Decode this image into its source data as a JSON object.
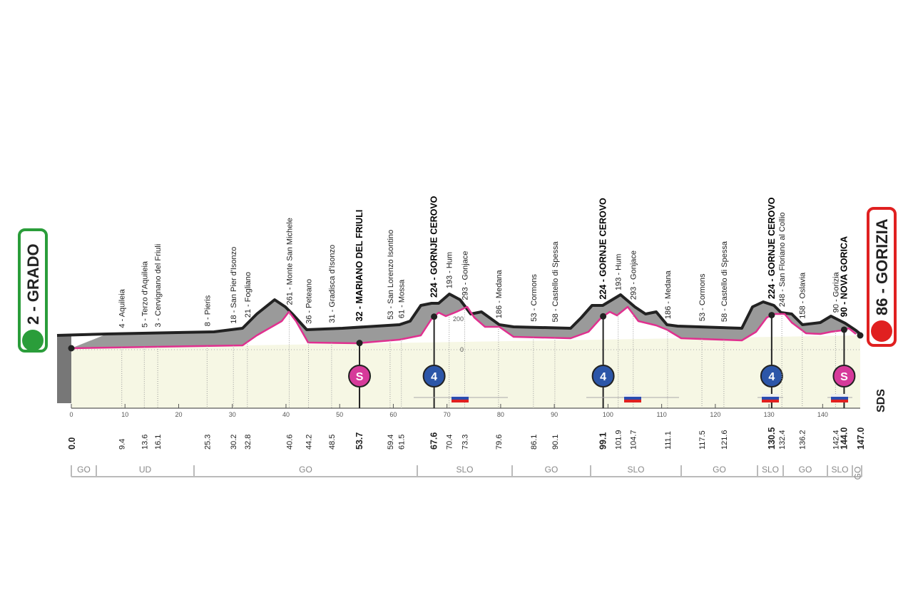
{
  "start": {
    "label": "2 - GRADO",
    "km": "0.0"
  },
  "finish": {
    "label": "86 - GORIZIA",
    "km": "147.0"
  },
  "waypoints": [
    {
      "label": "4 - Aquileia",
      "km": "9.4"
    },
    {
      "label": "5 - Terzo d'Aquileia",
      "km": "13.6"
    },
    {
      "label": "3 - Cervignano del Friuli",
      "km": "16.1"
    },
    {
      "label": "8 - Pieris",
      "km": "25.3"
    },
    {
      "label": "18 - San Pier d'Isonzo",
      "km": "30.2"
    },
    {
      "label": "21 - Fogliano",
      "km": "32.8"
    },
    {
      "label": "261 - Monte San Michele",
      "km": "40.6"
    },
    {
      "label": "36 - Peteano",
      "km": "44.2"
    },
    {
      "label": "31 - Gradisca d'Isonzo",
      "km": "48.5"
    },
    {
      "label": "32 - MARIANO DEL FRIULI",
      "km": "53.7",
      "bold": true,
      "badge": "S"
    },
    {
      "label": "53 - San Lorenzo Isontino",
      "km": "59.4"
    },
    {
      "label": "61 - Mossa",
      "km": "61.5"
    },
    {
      "label": "224 - GORNJE CEROVO",
      "km": "67.6",
      "bold": true,
      "badge": "4"
    },
    {
      "label": "193 - Hum",
      "km": "70.4"
    },
    {
      "label": "293 - Gonjace",
      "km": "73.3"
    },
    {
      "label": "186 - Medana",
      "km": "79.6"
    },
    {
      "label": "53 - Cormons",
      "km": "86.1"
    },
    {
      "label": "58 - Castello di Spessa",
      "km": "90.1"
    },
    {
      "label": "224 - GORNJE CEROVO",
      "km": "99.1",
      "bold": true,
      "badge": "4"
    },
    {
      "label": "193 - Hum",
      "km": "101.9"
    },
    {
      "label": "293 - Gonjace",
      "km": "104.7"
    },
    {
      "label": "186 - Medana",
      "km": "111.1"
    },
    {
      "label": "53 - Cormons",
      "km": "117.5"
    },
    {
      "label": "58 - Castello di Spessa",
      "km": "121.6"
    },
    {
      "label": "224 - GORNJE CEROVO",
      "km": "130.5",
      "bold": true,
      "badge": "4"
    },
    {
      "label": "248 - San Floriano al Collio",
      "km": "132.4"
    },
    {
      "label": "158 - Oslavia",
      "km": "136.2"
    },
    {
      "label": "90 - Gorizia",
      "km": "142.4"
    },
    {
      "label": "90 - NOVA GORICA",
      "km": "144.0",
      "bold": true,
      "badge": "S"
    }
  ],
  "km_ticks": [
    "0",
    "10",
    "20",
    "30",
    "40",
    "50",
    "60",
    "70",
    "80",
    "90",
    "100",
    "110",
    "120",
    "130",
    "140"
  ],
  "altitude_ticks": [
    "200",
    "0"
  ],
  "regions": [
    "GO",
    "UD",
    "GO",
    "SLO",
    "GO",
    "SLO",
    "GO",
    "SLO",
    "GO",
    "SLO",
    "GO"
  ],
  "logo": "SDS"
}
